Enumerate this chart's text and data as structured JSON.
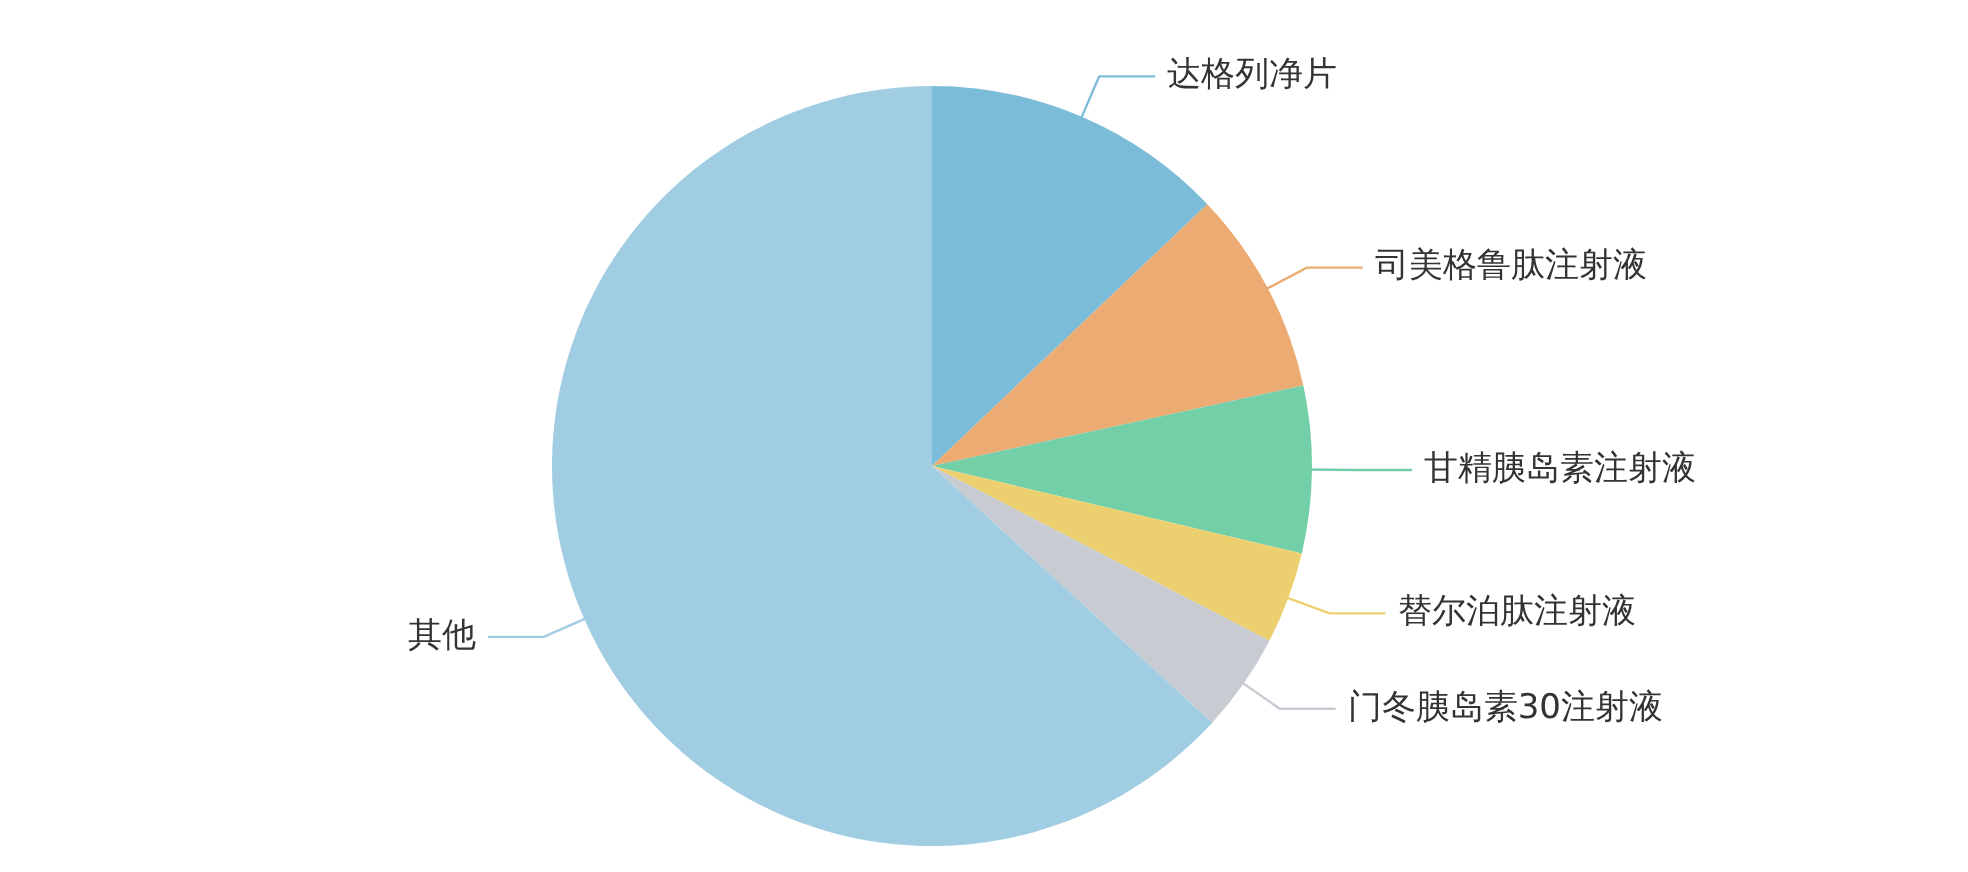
{
  "chart_data": {
    "type": "pie",
    "categories": [
      "达格列净片",
      "司美格鲁肽注射液",
      "甘精胰岛素注射液",
      "替尔泊肽注射液",
      "门冬胰岛素30注射液",
      "其他"
    ],
    "values": [
      12.9,
      8.7,
      7.1,
      3.9,
      4.2,
      63.2
    ],
    "colors": [
      "#7bbcd9",
      "#ecab73",
      "#72cfa8",
      "#ecd06f",
      "#c8cbd2",
      "#a0cde2"
    ],
    "legend": false
  }
}
